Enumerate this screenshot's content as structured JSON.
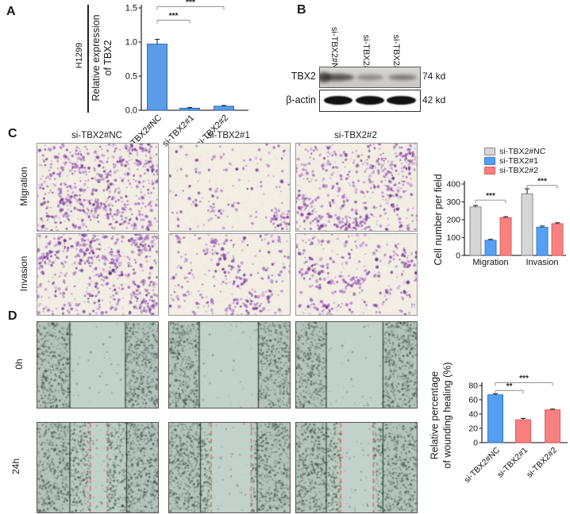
{
  "panels": {
    "A": {
      "label": "A",
      "cell_line": "H1299"
    },
    "B": {
      "label": "B",
      "lanes": [
        "si-TBX2#NC",
        "si-TBX2#1",
        "si-TBX2#2"
      ],
      "rows": [
        {
          "protein": "TBX2",
          "size": "74 kd"
        },
        {
          "protein": "β-actin",
          "size": "42 kd"
        }
      ]
    },
    "C": {
      "label": "C",
      "columns": [
        "si-TBX2#NC",
        "si-TBX2#1",
        "si-TBX2#2"
      ],
      "rows": [
        "Migration",
        "Invasion"
      ],
      "images": [
        {
          "row": "Migration",
          "column": "si-TBX2#NC",
          "density": 680,
          "seed": 101
        },
        {
          "row": "Migration",
          "column": "si-TBX2#1",
          "density": 175,
          "seed": 102
        },
        {
          "row": "Migration",
          "column": "si-TBX2#2",
          "density": 540,
          "seed": 103
        },
        {
          "row": "Invasion",
          "column": "si-TBX2#NC",
          "density": 620,
          "seed": 104
        },
        {
          "row": "Invasion",
          "column": "si-TBX2#1",
          "density": 300,
          "seed": 105
        },
        {
          "row": "Invasion",
          "column": "si-TBX2#2",
          "density": 340,
          "seed": 106
        }
      ]
    },
    "D": {
      "label": "D",
      "rows": [
        "0h",
        "24h"
      ],
      "images": [
        {
          "row": "0h",
          "column": "si-TBX2#NC",
          "wound_edges": [
            0.27,
            0.73
          ],
          "healed_edges": null,
          "seed": 201
        },
        {
          "row": "0h",
          "column": "si-TBX2#1",
          "wound_edges": [
            0.25,
            0.74
          ],
          "healed_edges": null,
          "seed": 202
        },
        {
          "row": "0h",
          "column": "si-TBX2#2",
          "wound_edges": [
            0.25,
            0.72
          ],
          "healed_edges": null,
          "seed": 203
        },
        {
          "row": "24h",
          "column": "si-TBX2#NC",
          "wound_edges": [
            0.27,
            0.74
          ],
          "healed_edges": [
            0.44,
            0.58
          ],
          "seed": 204
        },
        {
          "row": "24h",
          "column": "si-TBX2#1",
          "wound_edges": [
            0.26,
            0.73
          ],
          "healed_edges": [
            0.35,
            0.68
          ],
          "seed": 205
        },
        {
          "row": "24h",
          "column": "si-TBX2#2",
          "wound_edges": [
            0.25,
            0.72
          ],
          "healed_edges": [
            0.37,
            0.64
          ],
          "seed": 206
        }
      ]
    }
  },
  "chart_data": [
    {
      "id": "a",
      "type": "bar",
      "title": "",
      "ylabel_lines": [
        "Relative expression",
        "of TBX2"
      ],
      "categories": [
        "si-TBX2#NC",
        "si-TBX2#1",
        "si-TBX2#2"
      ],
      "values": [
        0.97,
        0.03,
        0.06
      ],
      "errors": [
        0.07,
        0.01,
        0.01
      ],
      "bar_colors": [
        "#5b9ce6",
        "#5b9ce6",
        "#5b9ce6"
      ],
      "bar_edges": [
        "#2e6db4",
        "#2e6db4",
        "#2e6db4"
      ],
      "ylim": [
        0,
        1.5
      ],
      "yticks": [
        0,
        0.5,
        1.0,
        1.5
      ],
      "ydecimals": 1,
      "grid": false,
      "brackets": [
        {
          "a": 0,
          "b": 1,
          "label": "***",
          "y": 1.32
        },
        {
          "a": 0,
          "b": 2,
          "label": "***",
          "y": 1.52
        }
      ]
    },
    {
      "id": "c",
      "type": "bar",
      "title": "",
      "ylabel_lines": [
        "Cell number per field"
      ],
      "categories": [
        "Migration",
        "Invasion"
      ],
      "series": [
        {
          "name": "si-TBX2#NC",
          "color": "#d6d6d6",
          "edge": "#8a8a8a",
          "values": [
            272,
            345
          ],
          "errors": [
            8,
            28
          ]
        },
        {
          "name": "si-TBX2#1",
          "color": "#55a0f2",
          "edge": "#2f7ad0",
          "values": [
            85,
            158
          ],
          "errors": [
            5,
            7
          ]
        },
        {
          "name": "si-TBX2#2",
          "color": "#f8807f",
          "edge": "#d85f5f",
          "values": [
            212,
            178
          ],
          "errors": [
            5,
            5
          ]
        }
      ],
      "ylim": [
        0,
        400
      ],
      "yticks": [
        0,
        100,
        200,
        300,
        400
      ],
      "ydecimals": 0,
      "grid": false,
      "legend_position": "top-right",
      "brackets": [
        {
          "group": 0,
          "s1": 0,
          "s2": 2,
          "label": "***",
          "y": 310
        },
        {
          "group": 1,
          "s1": 0,
          "s2": 2,
          "label": "***",
          "y": 392
        }
      ]
    },
    {
      "id": "d",
      "type": "bar",
      "title": "",
      "ylabel_lines": [
        "Relative percentage",
        "of wounding healing (%)"
      ],
      "categories": [
        "si-TBX2#NC",
        "si-TBX2#1",
        "si-TBX2#2"
      ],
      "values": [
        67,
        32,
        46
      ],
      "errors": [
        1.5,
        2,
        1
      ],
      "bar_colors": [
        "#55a0f2",
        "#f8807f",
        "#f8807f"
      ],
      "bar_edges": [
        "#2f7ad0",
        "#d85f5f",
        "#d85f5f"
      ],
      "ylim": [
        0,
        80
      ],
      "yticks": [
        0,
        20,
        40,
        60,
        80
      ],
      "ydecimals": 0,
      "grid": false,
      "brackets": [
        {
          "a": 0,
          "b": 1,
          "label": "**",
          "y": 73
        },
        {
          "a": 0,
          "b": 2,
          "label": "***",
          "y": 84
        }
      ]
    }
  ]
}
